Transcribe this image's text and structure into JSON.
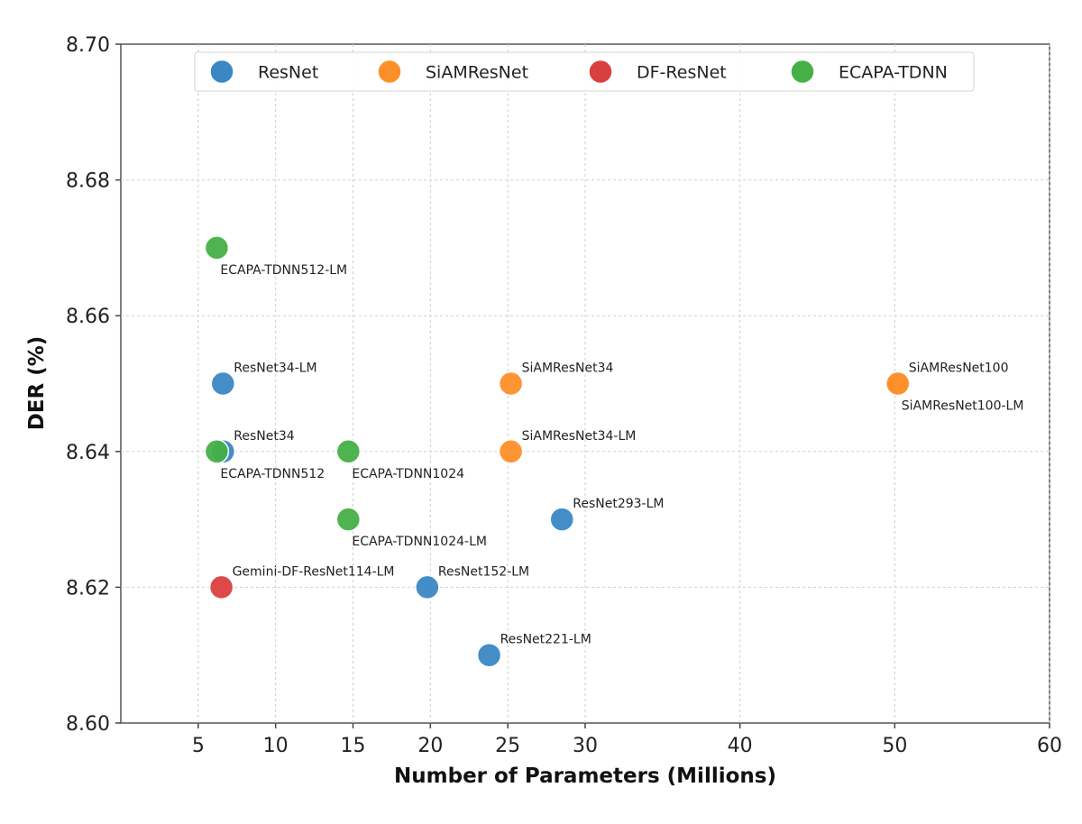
{
  "chart_data": {
    "type": "scatter",
    "xlabel": "Number of Parameters (Millions)",
    "ylabel": "DER (%)",
    "xlim": [
      0,
      60
    ],
    "ylim": [
      8.6,
      8.7
    ],
    "xticks": [
      5,
      10,
      15,
      20,
      25,
      30,
      40,
      50,
      60
    ],
    "yticks": [
      8.6,
      8.62,
      8.64,
      8.66,
      8.68,
      8.7
    ],
    "xtick_labels": [
      "5",
      "10",
      "15",
      "20",
      "25",
      "30",
      "40",
      "50",
      "60"
    ],
    "ytick_labels": [
      "8.60",
      "8.62",
      "8.64",
      "8.66",
      "8.68",
      "8.70"
    ],
    "grid": true,
    "legend_position": "top",
    "series": [
      {
        "name": "ResNet",
        "color": "#3a87c4",
        "points": [
          {
            "label": "ResNet34-LM",
            "x": 6.6,
            "y": 8.65,
            "label_pos": "above-right"
          },
          {
            "label": "ResNet34",
            "x": 6.6,
            "y": 8.64,
            "label_pos": "above-right"
          },
          {
            "label": "ResNet293-LM",
            "x": 28.5,
            "y": 8.63,
            "label_pos": "above-right"
          },
          {
            "label": "ResNet152-LM",
            "x": 19.8,
            "y": 8.62,
            "label_pos": "above-right"
          },
          {
            "label": "ResNet221-LM",
            "x": 23.8,
            "y": 8.61,
            "label_pos": "above-right"
          }
        ]
      },
      {
        "name": "SiAMResNet",
        "color": "#fd8f2a",
        "points": [
          {
            "label": "SiAMResNet34",
            "x": 25.2,
            "y": 8.65,
            "label_pos": "above-right"
          },
          {
            "label": "SiAMResNet34-LM",
            "x": 25.2,
            "y": 8.64,
            "label_pos": "above-right"
          },
          {
            "label": "SiAMResNet100",
            "x": 50.2,
            "y": 8.65,
            "label_pos": "above-right"
          },
          {
            "label": "SiAMResNet100-LM",
            "x": 50.2,
            "y": 8.65,
            "label_pos": "below-right"
          }
        ]
      },
      {
        "name": "DF-ResNet",
        "color": "#d93f3f",
        "points": [
          {
            "label": "Gemini-DF-ResNet114-LM",
            "x": 6.5,
            "y": 8.62,
            "label_pos": "above-right"
          }
        ]
      },
      {
        "name": "ECAPA-TDNN",
        "color": "#46b046",
        "points": [
          {
            "label": "ECAPA-TDNN512-LM",
            "x": 6.2,
            "y": 8.67,
            "label_pos": "below-right"
          },
          {
            "label": "ECAPA-TDNN512",
            "x": 6.2,
            "y": 8.64,
            "label_pos": "below-right"
          },
          {
            "label": "ECAPA-TDNN1024",
            "x": 14.7,
            "y": 8.64,
            "label_pos": "below-right"
          },
          {
            "label": "ECAPA-TDNN1024-LM",
            "x": 14.7,
            "y": 8.63,
            "label_pos": "below-right"
          }
        ]
      }
    ]
  }
}
